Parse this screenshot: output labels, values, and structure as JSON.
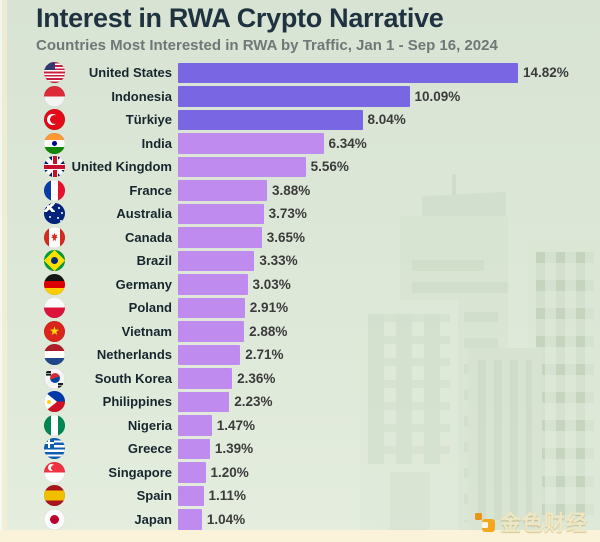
{
  "header": {
    "title": "Interest in RWA Crypto Narrative",
    "subtitle": "Countries Most Interested in RWA by Traffic, Jan 1 - Sep 16, 2024"
  },
  "chart_data": {
    "type": "bar",
    "orientation": "horizontal",
    "title": "Interest in RWA Crypto Narrative",
    "subtitle": "Countries Most Interested in RWA by Traffic, Jan 1 - Sep 16, 2024",
    "categories": [
      "United States",
      "Indonesia",
      "Türkiye",
      "India",
      "United Kingdom",
      "France",
      "Australia",
      "Canada",
      "Brazil",
      "Germany",
      "Poland",
      "Vietnam",
      "Netherlands",
      "South Korea",
      "Philippines",
      "Nigeria",
      "Greece",
      "Singapore",
      "Spain",
      "Japan"
    ],
    "values": [
      14.82,
      10.09,
      8.04,
      6.34,
      5.56,
      3.88,
      3.73,
      3.65,
      3.33,
      3.03,
      2.91,
      2.88,
      2.71,
      2.36,
      2.23,
      1.47,
      1.39,
      1.2,
      1.11,
      1.04
    ],
    "value_suffix": "%",
    "xlim": [
      0,
      14.82
    ],
    "grid": false,
    "legend": null,
    "flag_icons": [
      "flag-us",
      "flag-id",
      "flag-tr",
      "flag-in",
      "flag-gb",
      "flag-fr",
      "flag-au",
      "flag-ca",
      "flag-br",
      "flag-de",
      "flag-pl",
      "flag-vn",
      "flag-nl",
      "flag-kr",
      "flag-ph",
      "flag-ng",
      "flag-gr",
      "flag-sg",
      "flag-es",
      "flag-jp"
    ],
    "colors": {
      "bar_highlight": "#7866E2",
      "bar_default": "#BF8BEE",
      "highlight_count": 3,
      "category_label": "#16262E",
      "value_label": "#3B3B3B"
    }
  },
  "watermark": {
    "logo_icon": "jinse-finance-logo-icon",
    "text": "金色财经"
  },
  "theme": {
    "background_top": "#D8E3D4",
    "background_bottom": "#E4EDDE",
    "footer_strip": "#FBF3D9",
    "title_color": "#1F3240",
    "subtitle_color": "#6F7877"
  }
}
